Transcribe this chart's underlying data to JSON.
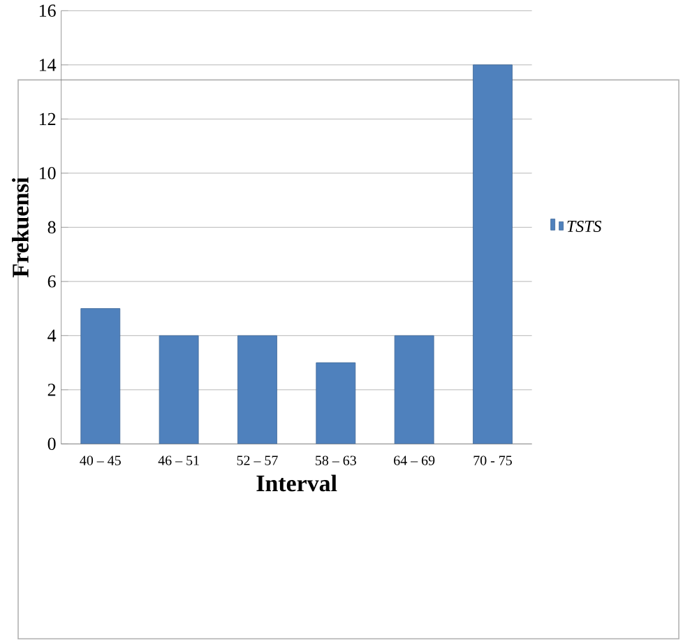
{
  "chart_data": {
    "type": "bar",
    "xlabel": "Interval",
    "ylabel": "Frekuensi",
    "categories": [
      "40 – 45",
      "46 – 51",
      "52 – 57",
      "58 – 63",
      "64 – 69",
      "70 - 75"
    ],
    "series": [
      {
        "name": "TSTS",
        "color": "#4f81bd",
        "values": [
          5,
          4,
          4,
          3,
          4,
          14
        ]
      }
    ],
    "ylim": [
      0,
      16
    ],
    "yticks": [
      0,
      2,
      4,
      6,
      8,
      10,
      12,
      14,
      16
    ],
    "grid": "y",
    "legend": "right"
  }
}
